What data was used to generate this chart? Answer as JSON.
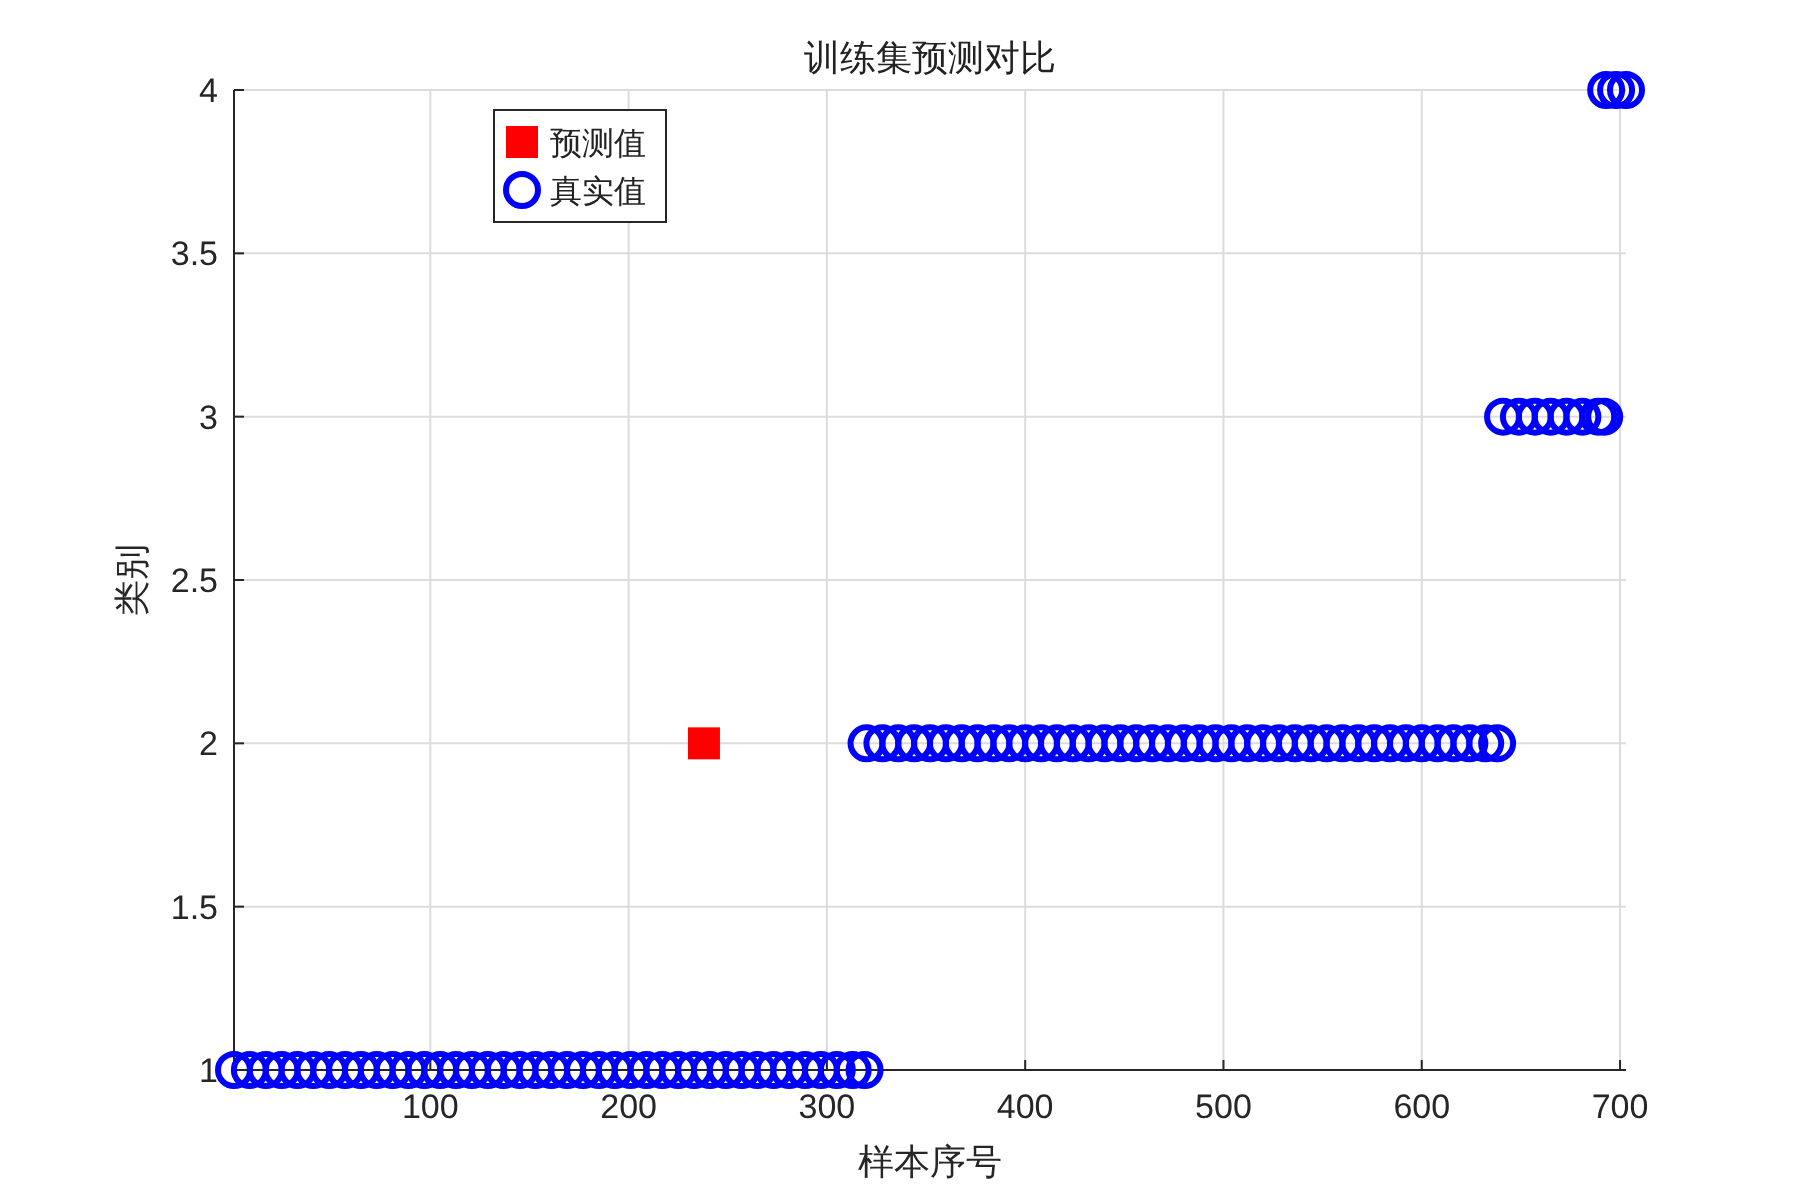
{
  "chart_data": {
    "type": "scatter",
    "title": "训练集预测对比",
    "xlabel": "样本序号",
    "ylabel": "类别",
    "xlim": [
      1,
      703
    ],
    "xticks": [
      100,
      200,
      300,
      400,
      500,
      600,
      700
    ],
    "ylim": [
      1,
      4
    ],
    "yticks": [
      1,
      1.5,
      2,
      2.5,
      3,
      3.5,
      4
    ],
    "grid": true,
    "legend": "top left",
    "series": [
      {
        "name": "预测值",
        "color": "#ff0000",
        "marker": "square",
        "x": [
          238
        ],
        "values": [
          2
        ]
      },
      {
        "name": "真实值",
        "color": "#0000ff",
        "marker": "circle",
        "x": [
          1,
          9,
          17,
          25,
          33,
          41,
          49,
          57,
          65,
          73,
          81,
          89,
          97,
          105,
          113,
          121,
          129,
          137,
          145,
          153,
          161,
          169,
          177,
          185,
          193,
          201,
          209,
          217,
          225,
          233,
          241,
          249,
          257,
          265,
          273,
          281,
          289,
          297,
          305,
          313,
          319,
          320,
          328,
          336,
          344,
          352,
          360,
          368,
          376,
          384,
          392,
          400,
          408,
          416,
          424,
          432,
          440,
          448,
          456,
          464,
          472,
          480,
          488,
          496,
          504,
          512,
          520,
          528,
          536,
          544,
          552,
          560,
          568,
          576,
          584,
          592,
          600,
          608,
          616,
          624,
          632,
          638,
          641,
          649,
          657,
          665,
          673,
          681,
          689,
          692,
          693,
          698,
          703
        ],
        "values": [
          1,
          1,
          1,
          1,
          1,
          1,
          1,
          1,
          1,
          1,
          1,
          1,
          1,
          1,
          1,
          1,
          1,
          1,
          1,
          1,
          1,
          1,
          1,
          1,
          1,
          1,
          1,
          1,
          1,
          1,
          1,
          1,
          1,
          1,
          1,
          1,
          1,
          1,
          1,
          1,
          1,
          2,
          2,
          2,
          2,
          2,
          2,
          2,
          2,
          2,
          2,
          2,
          2,
          2,
          2,
          2,
          2,
          2,
          2,
          2,
          2,
          2,
          2,
          2,
          2,
          2,
          2,
          2,
          2,
          2,
          2,
          2,
          2,
          2,
          2,
          2,
          2,
          2,
          2,
          2,
          2,
          2,
          3,
          3,
          3,
          3,
          3,
          3,
          3,
          3,
          4,
          4,
          4
        ]
      }
    ]
  }
}
